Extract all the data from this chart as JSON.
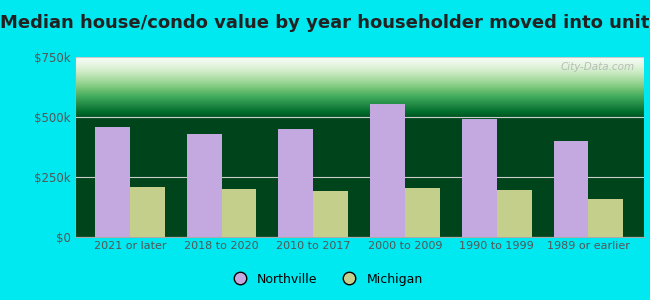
{
  "title": "Median house/condo value by year householder moved into unit",
  "categories": [
    "2021 or later",
    "2018 to 2020",
    "2010 to 2017",
    "2000 to 2009",
    "1990 to 1999",
    "1989 or earlier"
  ],
  "northville_values": [
    460000,
    430000,
    450000,
    555000,
    490000,
    400000
  ],
  "michigan_values": [
    210000,
    200000,
    190000,
    205000,
    195000,
    160000
  ],
  "northville_color": "#c4a8e0",
  "michigan_color": "#c5cf8c",
  "ylim": [
    0,
    750000
  ],
  "yticks": [
    0,
    250000,
    500000,
    750000
  ],
  "ytick_labels": [
    "$0",
    "$250k",
    "$500k",
    "$750k"
  ],
  "plot_bg_top": "#e8f5e8",
  "plot_bg_bottom": "#d0ecd0",
  "outer_background": "#00e8f0",
  "title_fontsize": 13,
  "watermark": "City-Data.com",
  "legend_northville": "Northville",
  "legend_michigan": "Michigan",
  "bar_width": 0.38
}
